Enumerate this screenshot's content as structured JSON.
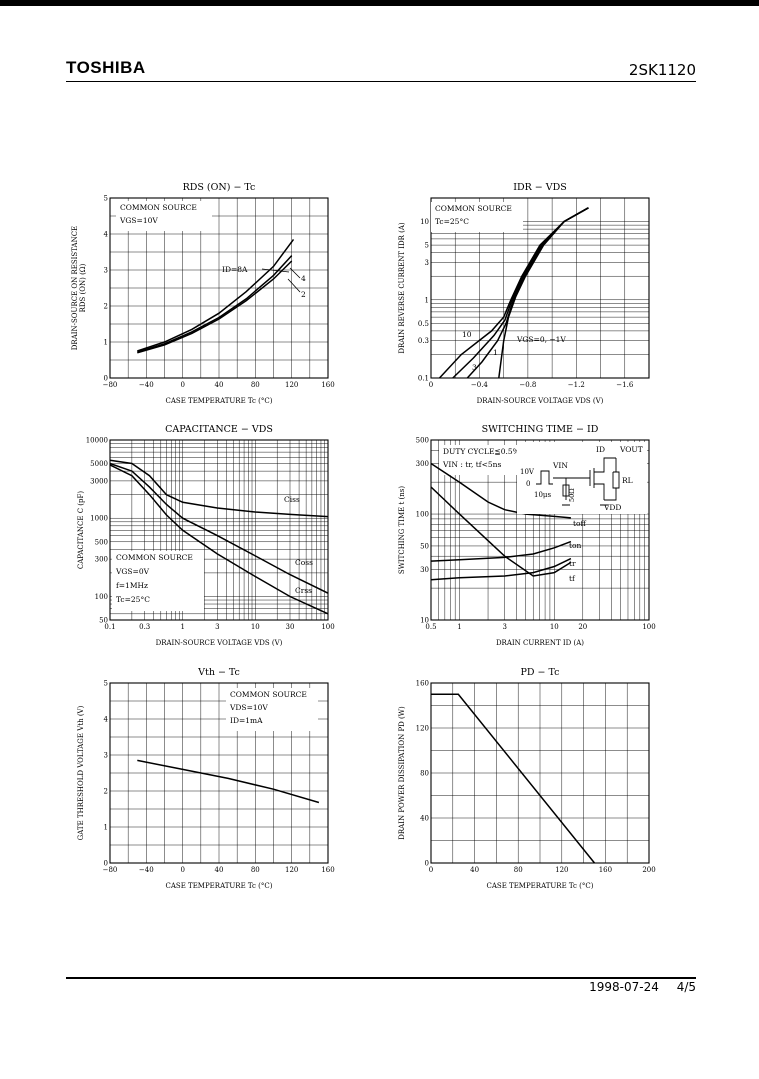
{
  "header": {
    "brand": "TOSHIBA",
    "part_number": "2SK1120"
  },
  "footer": {
    "date": "1998-07-24",
    "page": "4/5"
  },
  "chart_data": [
    {
      "id": "rds",
      "type": "line",
      "title": "RDS (ON) − Tc",
      "xlabel": "CASE TEMPERATURE   Tc   (°C)",
      "ylabel": "DRAIN-SOURCE ON RESISTANCE",
      "ylabel2": "RDS (ON)   (Ω)",
      "xlim": [
        -80,
        160
      ],
      "ylim": [
        0,
        5
      ],
      "xticks": [
        -80,
        -40,
        0,
        40,
        80,
        120,
        160
      ],
      "yticks": [
        0,
        1,
        2,
        3,
        4,
        5
      ],
      "notes": [
        "COMMON SOURCE",
        "VGS=10V"
      ],
      "annotations": [
        "ID=8A",
        "4",
        "2"
      ],
      "series": [
        {
          "name": "8",
          "x": [
            -50,
            -20,
            10,
            40,
            70,
            100,
            122
          ],
          "y": [
            0.75,
            1.0,
            1.35,
            1.8,
            2.4,
            3.1,
            3.85
          ]
        },
        {
          "name": "4",
          "x": [
            -50,
            -20,
            10,
            40,
            70,
            100,
            120
          ],
          "y": [
            0.72,
            0.95,
            1.28,
            1.68,
            2.2,
            2.85,
            3.4
          ]
        },
        {
          "name": "2",
          "x": [
            -50,
            -20,
            10,
            40,
            70,
            100,
            120
          ],
          "y": [
            0.7,
            0.92,
            1.24,
            1.64,
            2.15,
            2.75,
            3.25
          ]
        }
      ]
    },
    {
      "id": "idr",
      "type": "line",
      "title": "IDR − VDS",
      "xlabel": "DRAIN-SOURCE VOLTAGE   VDS   (V)",
      "ylabel": "DRAIN REVERSE CURRENT   IDR   (A)",
      "xlim": [
        0,
        -1.8
      ],
      "ylim": [
        0.1,
        20
      ],
      "yscale": "log",
      "xticks": [
        0,
        -0.4,
        -0.8,
        -1.2,
        -1.6
      ],
      "yticks": [
        0.1,
        0.3,
        0.5,
        1,
        3,
        5,
        10
      ],
      "notes": [
        "COMMON SOURCE",
        "Tc=25°C"
      ],
      "annotations": [
        "10",
        "1",
        "3",
        "VGS=0,  −1V"
      ],
      "series": [
        {
          "name": "10",
          "x": [
            -0.07,
            -0.25,
            -0.5,
            -0.6,
            -0.66,
            -0.75,
            -0.9,
            -1.1,
            -1.3
          ],
          "y": [
            0.1,
            0.2,
            0.4,
            0.6,
            1.0,
            2.0,
            5.0,
            10.0,
            15.0
          ]
        },
        {
          "name": "1",
          "x": [
            -0.3,
            -0.42,
            -0.55,
            -0.62,
            -0.68,
            -0.77,
            -0.92,
            -1.1,
            -1.3
          ],
          "y": [
            0.1,
            0.16,
            0.3,
            0.5,
            1.0,
            2.0,
            5.0,
            10.0,
            15.0
          ]
        },
        {
          "name": "3",
          "x": [
            -0.18,
            -0.35,
            -0.52,
            -0.61,
            -0.67,
            -0.76,
            -0.91,
            -1.1,
            -1.3
          ],
          "y": [
            0.1,
            0.18,
            0.35,
            0.55,
            1.0,
            2.0,
            5.0,
            10.0,
            15.0
          ]
        },
        {
          "name": "0,-1",
          "x": [
            -0.56,
            -0.6,
            -0.64,
            -0.7,
            -0.78,
            -0.93,
            -1.1,
            -1.3
          ],
          "y": [
            0.1,
            0.3,
            0.6,
            1.1,
            2.0,
            5.0,
            10.0,
            15.0
          ]
        }
      ]
    },
    {
      "id": "cap",
      "type": "line",
      "title": "CAPACITANCE − VDS",
      "xlabel": "DRAIN-SOURCE VOLTAGE   VDS   (V)",
      "ylabel": "CAPACITANCE   C   (pF)",
      "xlim": [
        0.1,
        100
      ],
      "ylim": [
        50,
        10000
      ],
      "xscale": "log",
      "yscale": "log",
      "xtick_labels": [
        "0.1",
        "0.3",
        "1",
        "3",
        "10",
        "30",
        "100"
      ],
      "xticks": [
        0.1,
        0.3,
        1,
        3,
        10,
        30,
        100
      ],
      "ytick_labels": [
        "50",
        "100",
        "300",
        "500",
        "1000",
        "3000",
        "5000",
        "10000"
      ],
      "yticks": [
        50,
        100,
        300,
        500,
        1000,
        3000,
        5000,
        10000
      ],
      "notes": [
        "COMMON SOURCE",
        "VGS=0V",
        "f=1MHz",
        "Tc=25°C"
      ],
      "series": [
        {
          "name": "Ciss",
          "x": [
            0.1,
            0.2,
            0.35,
            0.6,
            1,
            3,
            10,
            30,
            100
          ],
          "y": [
            5500,
            5000,
            3500,
            2000,
            1600,
            1350,
            1200,
            1120,
            1050
          ]
        },
        {
          "name": "Coss",
          "x": [
            0.1,
            0.2,
            0.35,
            0.6,
            1,
            3,
            10,
            30,
            100
          ],
          "y": [
            5000,
            4000,
            2500,
            1500,
            1000,
            600,
            330,
            190,
            110
          ]
        },
        {
          "name": "Crss",
          "x": [
            0.1,
            0.2,
            0.35,
            0.6,
            1,
            3,
            10,
            30,
            100
          ],
          "y": [
            4800,
            3500,
            2000,
            1100,
            700,
            350,
            180,
            100,
            60
          ]
        }
      ]
    },
    {
      "id": "sw",
      "type": "line",
      "title": "SWITCHING TIME − ID",
      "xlabel": "DRAIN CURRENT   ID   (A)",
      "ylabel": "SWITCHING TIME   t   (ns)",
      "xlim": [
        0.5,
        100
      ],
      "ylim": [
        10,
        500
      ],
      "xscale": "log",
      "yscale": "log",
      "xtick_labels": [
        "0.5",
        "1",
        "3",
        "10",
        "20",
        "100"
      ],
      "xticks": [
        0.5,
        1,
        3,
        10,
        20,
        100
      ],
      "ytick_labels": [
        "10",
        "30",
        "50",
        "100",
        "300",
        "500"
      ],
      "yticks": [
        10,
        30,
        50,
        100,
        300,
        500
      ],
      "notes": [
        "DUTY CYCLE≦0.5%",
        "VIN : tr, tf<5ns"
      ],
      "circuit_labels": [
        "ID",
        "VOUT",
        "VIN",
        "10V",
        "0",
        "10μs",
        "50Ω",
        "RL",
        "VDD"
      ],
      "series": [
        {
          "name": "toff",
          "x": [
            0.5,
            1,
            2,
            3,
            5,
            10,
            15
          ],
          "y": [
            300,
            200,
            130,
            110,
            100,
            95,
            92
          ]
        },
        {
          "name": "ton",
          "x": [
            0.5,
            1,
            3,
            6,
            10,
            15
          ],
          "y": [
            36,
            37,
            39,
            42,
            48,
            55
          ]
        },
        {
          "name": "tr",
          "x": [
            0.5,
            1,
            3,
            6,
            10,
            15
          ],
          "y": [
            180,
            100,
            40,
            26,
            28,
            35
          ]
        },
        {
          "name": "tf",
          "x": [
            0.5,
            1,
            3,
            6,
            10,
            15
          ],
          "y": [
            24,
            25,
            26,
            28,
            32,
            38
          ]
        }
      ]
    },
    {
      "id": "vth",
      "type": "line",
      "title": "Vth − Tc",
      "xlabel": "CASE TEMPERATURE   Tc   (°C)",
      "ylabel": "GATE THRESHOLD VOLTAGE   Vth   (V)",
      "xlim": [
        -80,
        160
      ],
      "ylim": [
        0,
        5
      ],
      "xticks": [
        -80,
        -40,
        0,
        40,
        80,
        120,
        160
      ],
      "yticks": [
        0,
        1,
        2,
        3,
        4,
        5
      ],
      "notes": [
        "COMMON SOURCE",
        "VDS=10V",
        "ID=1mA"
      ],
      "series": [
        {
          "name": "Vth",
          "x": [
            -50,
            0,
            50,
            100,
            150
          ],
          "y": [
            2.85,
            2.6,
            2.35,
            2.05,
            1.68
          ]
        }
      ]
    },
    {
      "id": "pd",
      "type": "line",
      "title": "PD − Tc",
      "xlabel": "CASE TEMPERATURE   Tc   (°C)",
      "ylabel": "DRAIN POWER DISSIPATION   PD   (W)",
      "xlim": [
        0,
        200
      ],
      "ylim": [
        0,
        160
      ],
      "xticks": [
        0,
        40,
        80,
        120,
        160,
        200
      ],
      "yticks": [
        0,
        40,
        80,
        120,
        160
      ],
      "series": [
        {
          "name": "PD",
          "x": [
            0,
            25,
            150
          ],
          "y": [
            150,
            150,
            0
          ]
        }
      ]
    }
  ]
}
